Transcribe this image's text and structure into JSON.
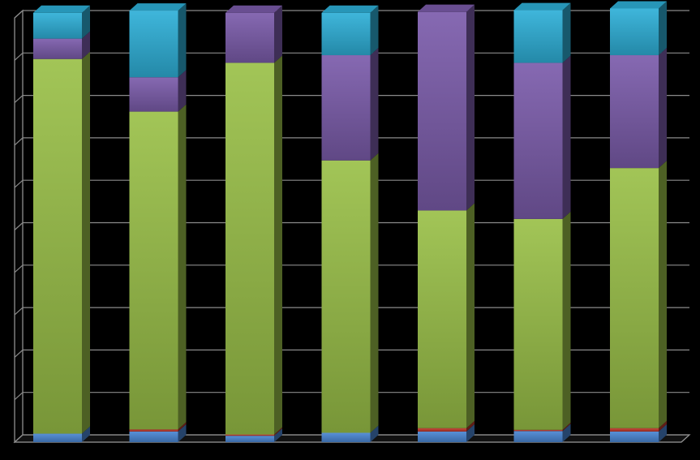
{
  "chart_data": {
    "type": "bar",
    "stacked": true,
    "three_d": true,
    "title": "",
    "xlabel": "",
    "ylabel": "",
    "ylim": [
      0,
      100
    ],
    "grid": true,
    "categories": [
      "",
      "",
      "",
      "",
      "",
      "",
      ""
    ],
    "series": [
      {
        "color": "#4a86d4",
        "values": [
          2.0,
          2.5,
          1.5,
          2.2,
          2.5,
          2.6,
          2.5
        ]
      },
      {
        "color": "#c0392b",
        "values": [
          0.0,
          0.5,
          0.3,
          0.0,
          0.8,
          0.3,
          0.8
        ]
      },
      {
        "color": "#9ac048",
        "values": [
          88.3,
          74.9,
          87.6,
          64.2,
          51.3,
          49.7,
          61.3
        ]
      },
      {
        "color": "#7b5cab",
        "values": [
          4.8,
          8.1,
          11.8,
          24.8,
          46.8,
          36.8,
          26.6
        ]
      },
      {
        "color": "#2eb0d8",
        "values": [
          6.1,
          15.7,
          0.0,
          10.0,
          0.0,
          12.4,
          11.0
        ]
      }
    ]
  }
}
